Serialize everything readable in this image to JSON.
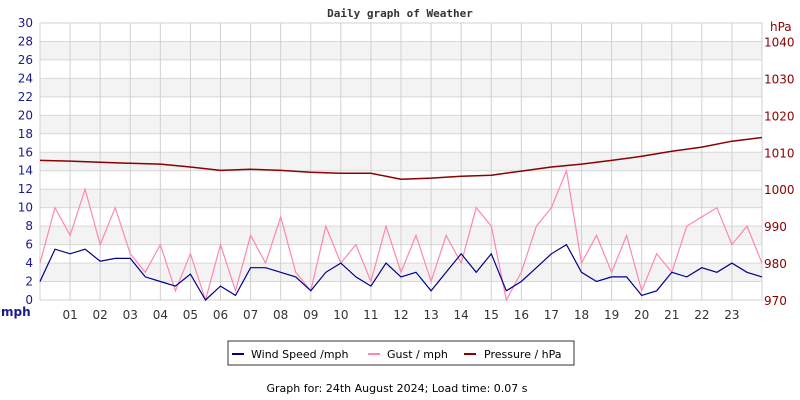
{
  "chart_data": {
    "type": "line",
    "title": "Daily graph of Weather",
    "left_axis": {
      "label": "mph",
      "range": [
        0,
        30
      ],
      "ticks": [
        0,
        2,
        4,
        6,
        8,
        10,
        12,
        14,
        16,
        18,
        20,
        22,
        24,
        26,
        28,
        30
      ],
      "color": "#1a1a8c"
    },
    "right_axis": {
      "label": "hPa",
      "range": [
        970,
        1045
      ],
      "ticks": [
        970,
        980,
        990,
        1000,
        1010,
        1020,
        1030,
        1040
      ],
      "color": "#8b0000"
    },
    "x_axis": {
      "unit": "hour",
      "range": [
        0,
        24
      ],
      "tick_labels": [
        "01",
        "02",
        "03",
        "04",
        "05",
        "06",
        "07",
        "08",
        "09",
        "10",
        "11",
        "12",
        "13",
        "14",
        "15",
        "16",
        "17",
        "18",
        "19",
        "20",
        "21",
        "22",
        "23"
      ]
    },
    "grid": true,
    "legend_position": "bottom",
    "series": [
      {
        "name": "Wind Speed /mph",
        "axis": "left",
        "color": "#00008b",
        "x_step_hours": 0.5,
        "values": [
          2.0,
          5.5,
          5.0,
          5.5,
          4.2,
          4.5,
          4.5,
          2.5,
          2.0,
          1.5,
          2.8,
          0,
          1.5,
          0.5,
          3.5,
          3.5,
          3.0,
          2.5,
          1.0,
          3.0,
          4.0,
          2.5,
          1.5,
          4.0,
          2.5,
          3.0,
          1.0,
          3.0,
          5.0,
          3.0,
          5.0,
          1.0,
          2.0,
          3.5,
          5.0,
          6.0,
          3.0,
          2.0,
          2.5,
          2.5,
          0.5,
          1.0,
          3.0,
          2.5,
          3.5,
          3.0,
          4.0,
          3.0,
          2.5
        ]
      },
      {
        "name": "Gust / mph",
        "axis": "left",
        "color": "#ff88aa",
        "x_step_hours": 0.5,
        "values": [
          4,
          10,
          7,
          12,
          6,
          10,
          5,
          3,
          6,
          1,
          5,
          0,
          6,
          1,
          7,
          4,
          9,
          3,
          1,
          8,
          4,
          6,
          2,
          8,
          3,
          7,
          2,
          7,
          4,
          10,
          8,
          0,
          3,
          8,
          10,
          14,
          4,
          7,
          3,
          7,
          1,
          5,
          3,
          8,
          9,
          10,
          6,
          8,
          4
        ]
      },
      {
        "name": "Pressure / hPa",
        "axis": "right",
        "color": "#8b0000",
        "x_step_hours": 1,
        "values": [
          1007.8,
          1007.6,
          1007.3,
          1007.0,
          1006.8,
          1006.0,
          1005.1,
          1005.4,
          1005.1,
          1004.6,
          1004.3,
          1004.3,
          1002.7,
          1003.0,
          1003.5,
          1003.8,
          1004.9,
          1006.0,
          1006.8,
          1007.8,
          1008.9,
          1010.3,
          1011.4,
          1013.0,
          1014.0
        ]
      }
    ]
  },
  "footer": "Graph for: 24th August 2024; Load time: 0.07 s"
}
